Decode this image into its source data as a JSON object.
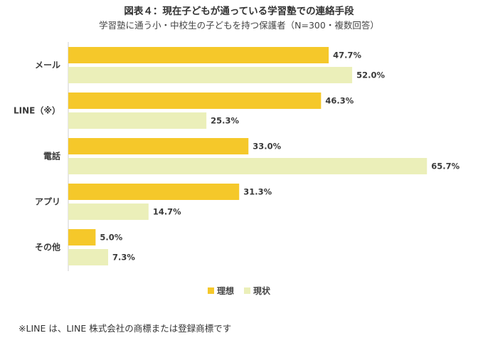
{
  "chart_data": {
    "type": "bar",
    "orientation": "horizontal",
    "title": "図表４：現在子どもが通っている学習塾での連絡手段",
    "subtitle": "学習塾に通う小・中校生の子どもを持つ保護者（N=300・複数回答）",
    "categories": [
      "メール",
      "LINE（※）",
      "電話",
      "アプリ",
      "その他"
    ],
    "series": [
      {
        "name": "理想",
        "values": [
          47.7,
          46.3,
          33.0,
          31.3,
          5.0
        ],
        "labels": [
          "47.7%",
          "46.3%",
          "33.0%",
          "31.3%",
          "5.0%"
        ],
        "color": "#f5c82a"
      },
      {
        "name": "現状",
        "values": [
          52.0,
          25.3,
          65.7,
          14.7,
          7.3
        ],
        "labels": [
          "52.0%",
          "25.3%",
          "65.7%",
          "14.7%",
          "7.3%"
        ],
        "color": "#ebefb9"
      }
    ],
    "xlim": [
      0,
      70
    ],
    "legend_position": "bottom",
    "grid": false
  },
  "footnote": "※LINE は、LINE 株式会社の商標または登録商標です"
}
